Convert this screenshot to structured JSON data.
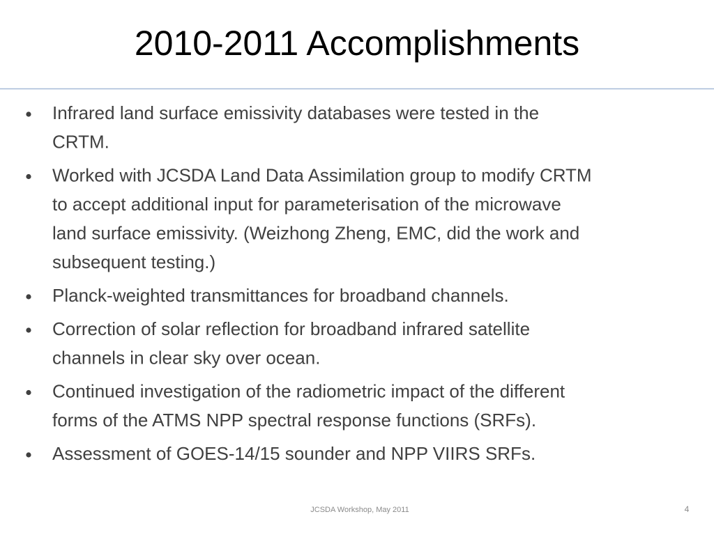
{
  "header": {
    "title": "2010-2011 Accomplishments"
  },
  "bullets": [
    [
      "Infrared land surface emissivity databases were tested in the",
      "CRTM."
    ],
    [
      "Worked with JCSDA Land Data Assimilation group to modify CRTM",
      "to accept additional input for parameterisation of the microwave",
      "land surface emissivity. (Weizhong Zheng, EMC, did the work and",
      "subsequent testing.)"
    ],
    [
      "Planck-weighted transmittances for broadband channels."
    ],
    [
      "Correction of solar reflection for broadband infrared satellite",
      "channels in clear sky over ocean."
    ],
    [
      "Continued investigation of the radiometric impact of the different",
      "forms of the ATMS NPP spectral response functions (SRFs)."
    ],
    [
      "Assessment of GOES-14/15 sounder and NPP VIIRS SRFs."
    ]
  ],
  "footer": {
    "text": "JCSDA Workshop, May 2011",
    "page_number": 4
  }
}
